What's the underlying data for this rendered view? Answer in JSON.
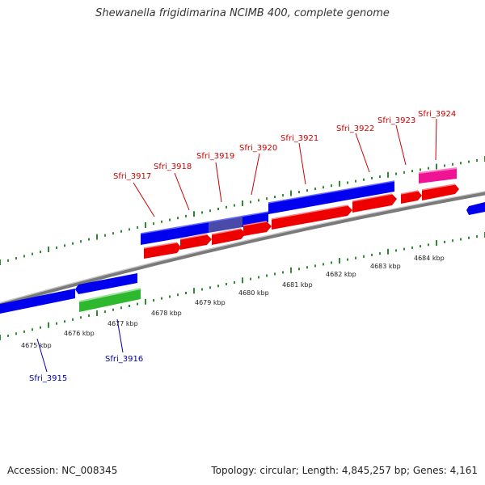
{
  "title": "Shewanella frigidimarina NCIMB 400, complete genome",
  "footer": {
    "accession": "Accession: NC_008345",
    "summary": "Topology: circular; Length: 4,845,257 bp; Genes: 4,161"
  },
  "colors": {
    "backbone": "#808080",
    "tick": "#2e8b2e",
    "cds_forward": "#0000ee",
    "cds_reverse": "#ee0000",
    "highlight": "#ee1493",
    "green_feature": "#2db82d",
    "label_forward": "#cc0000",
    "label_reverse": "#0000aa"
  },
  "scale": {
    "ticks": [
      "4675 kbp",
      "4676 kbp",
      "4677 kbp",
      "4678 kbp",
      "4679 kbp",
      "4680 kbp",
      "4681 kbp",
      "4682 kbp",
      "4683 kbp",
      "4684 kbp"
    ]
  },
  "genes_above": [
    "Sfri_3917",
    "Sfri_3918",
    "Sfri_3919",
    "Sfri_3920",
    "Sfri_3921",
    "Sfri_3922",
    "Sfri_3923",
    "Sfri_3924"
  ],
  "genes_below": [
    "Sfri_3915",
    "Sfri_3916"
  ]
}
